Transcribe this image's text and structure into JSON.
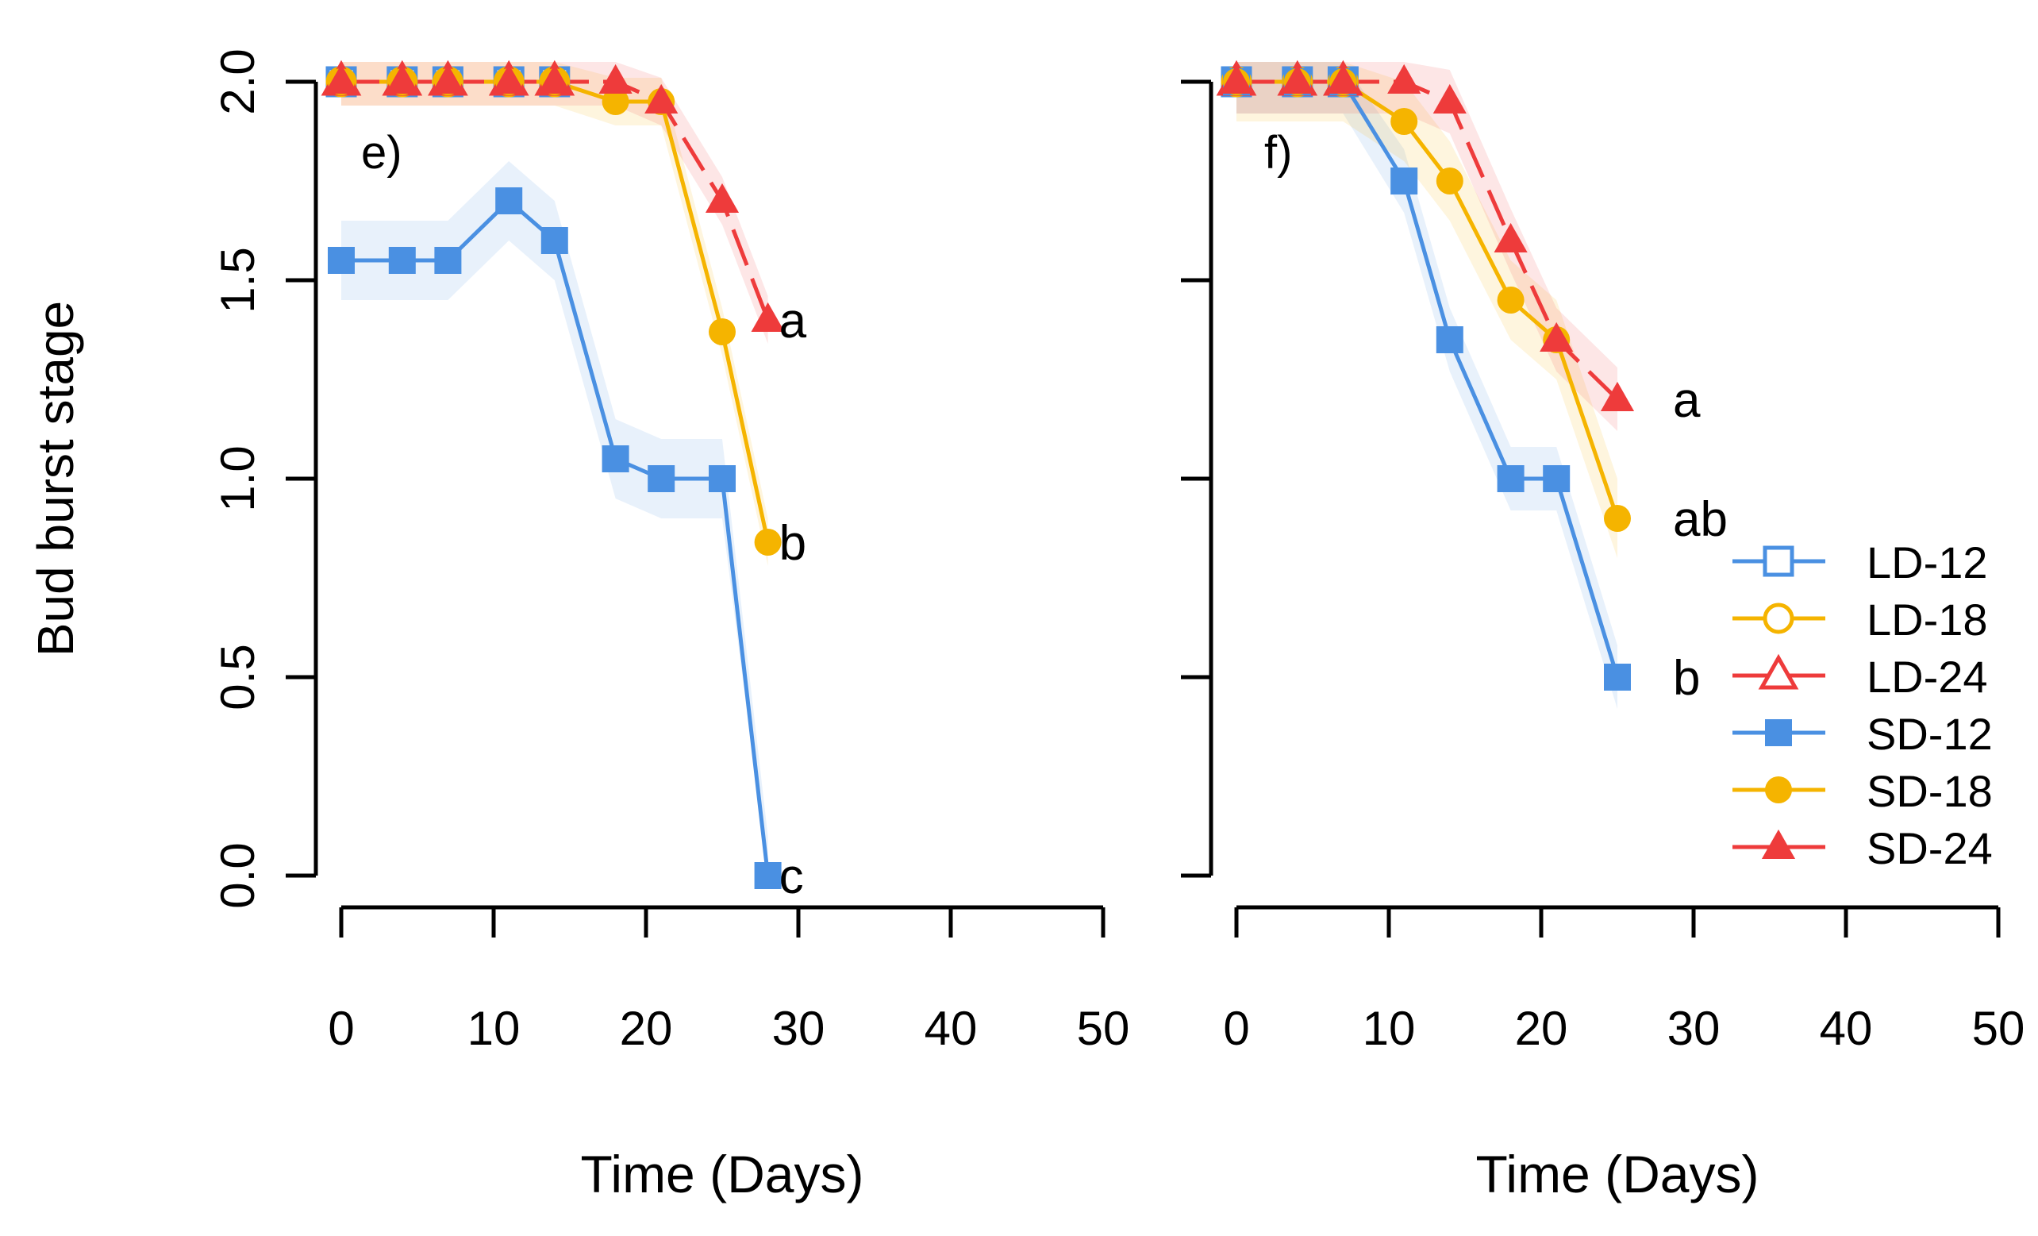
{
  "chart_data": [
    {
      "type": "line",
      "panel_label": "e)",
      "xlabel": "Time (Days)",
      "ylabel": "Bud burst stage",
      "xlim": [
        0,
        50
      ],
      "ylim": [
        0,
        2
      ],
      "xticks": [
        "0",
        "10",
        "20",
        "30",
        "40",
        "50"
      ],
      "yticks": [
        "0.0",
        "0.5",
        "1.0",
        "1.5",
        "2.0"
      ],
      "series": [
        {
          "name": "LD-12",
          "marker": "square-open",
          "color": "#4a90e2",
          "x": [
            0,
            4,
            7,
            11,
            14
          ],
          "y": [
            2.0,
            2.0,
            2.0,
            2.0,
            2.0
          ],
          "band": 0
        },
        {
          "name": "LD-18",
          "marker": "circle-open",
          "color": "#f5b400",
          "x": [
            0,
            4,
            7,
            11,
            14
          ],
          "y": [
            2.0,
            2.0,
            2.0,
            2.0,
            2.0
          ],
          "band": 0
        },
        {
          "name": "LD-24",
          "marker": "triangle-open",
          "color": "#ee3b3b",
          "x": [
            0,
            4,
            7,
            11,
            14
          ],
          "y": [
            2.0,
            2.0,
            2.0,
            2.0,
            2.0
          ],
          "band": 0
        },
        {
          "name": "SD-12",
          "marker": "square",
          "color": "#4a90e2",
          "x": [
            0,
            4,
            7,
            11,
            14,
            18,
            21,
            25,
            28
          ],
          "y": [
            1.55,
            1.55,
            1.55,
            1.7,
            1.6,
            1.05,
            1.0,
            1.0,
            0.0
          ],
          "band": 0.1,
          "end_label": "c"
        },
        {
          "name": "SD-18",
          "marker": "circle",
          "color": "#f5b400",
          "x": [
            0,
            4,
            7,
            11,
            14,
            18,
            21,
            25,
            28
          ],
          "y": [
            2.0,
            2.0,
            2.0,
            2.0,
            2.0,
            1.95,
            1.95,
            1.37,
            0.84
          ],
          "band": 0.06,
          "end_label": "b"
        },
        {
          "name": "SD-24",
          "marker": "triangle",
          "color": "#ee3b3b",
          "x": [
            0,
            4,
            7,
            11,
            14,
            18,
            21,
            25,
            28
          ],
          "y": [
            2.0,
            2.0,
            2.0,
            2.0,
            2.0,
            2.0,
            1.95,
            1.7,
            1.4
          ],
          "band": 0.06,
          "end_label": "a"
        }
      ]
    },
    {
      "type": "line",
      "panel_label": "f)",
      "xlabel": "Time (Days)",
      "ylabel": "",
      "xlim": [
        0,
        50
      ],
      "ylim": [
        0,
        2
      ],
      "xticks": [
        "0",
        "10",
        "20",
        "30",
        "40",
        "50"
      ],
      "yticks": [
        "0.0",
        "0.5",
        "1.0",
        "1.5",
        "2.0"
      ],
      "series": [
        {
          "name": "LD-12",
          "marker": "square-open",
          "color": "#4a90e2",
          "x": [
            0,
            4,
            7
          ],
          "y": [
            2.0,
            2.0,
            2.0
          ],
          "band": 0
        },
        {
          "name": "LD-18",
          "marker": "circle-open",
          "color": "#f5b400",
          "x": [
            0,
            4,
            7
          ],
          "y": [
            2.0,
            2.0,
            2.0
          ],
          "band": 0
        },
        {
          "name": "LD-24",
          "marker": "triangle-open",
          "color": "#ee3b3b",
          "x": [
            0,
            4,
            7
          ],
          "y": [
            2.0,
            2.0,
            2.0
          ],
          "band": 0
        },
        {
          "name": "SD-12",
          "marker": "square",
          "color": "#4a90e2",
          "x": [
            0,
            4,
            7,
            11,
            14,
            18,
            21,
            25
          ],
          "y": [
            2.0,
            2.0,
            2.0,
            1.75,
            1.35,
            1.0,
            1.0,
            0.5
          ],
          "band": 0.08,
          "end_label": "b"
        },
        {
          "name": "SD-18",
          "marker": "circle",
          "color": "#f5b400",
          "x": [
            0,
            4,
            7,
            11,
            14,
            18,
            21,
            25
          ],
          "y": [
            2.0,
            2.0,
            2.0,
            1.9,
            1.75,
            1.45,
            1.35,
            0.9
          ],
          "band": 0.1,
          "end_label": "ab"
        },
        {
          "name": "SD-24",
          "marker": "triangle",
          "color": "#ee3b3b",
          "x": [
            0,
            4,
            7,
            11,
            14,
            18,
            21,
            25
          ],
          "y": [
            2.0,
            2.0,
            2.0,
            2.0,
            1.95,
            1.6,
            1.35,
            1.2
          ],
          "band": 0.08,
          "end_label": "a"
        }
      ]
    }
  ],
  "legend": {
    "placement": "right",
    "entries": [
      {
        "name": "LD-12",
        "marker": "square-open",
        "color": "#4a90e2"
      },
      {
        "name": "LD-18",
        "marker": "circle-open",
        "color": "#f5b400"
      },
      {
        "name": "LD-24",
        "marker": "triangle-open",
        "color": "#ee3b3b"
      },
      {
        "name": "SD-12",
        "marker": "square",
        "color": "#4a90e2"
      },
      {
        "name": "SD-18",
        "marker": "circle",
        "color": "#f5b400"
      },
      {
        "name": "SD-24",
        "marker": "triangle",
        "color": "#ee3b3b"
      }
    ]
  }
}
